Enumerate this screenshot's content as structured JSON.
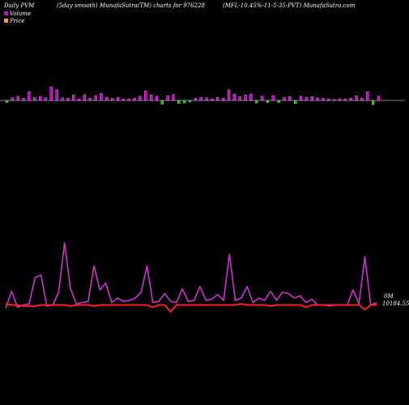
{
  "header": {
    "left": "Daily PVM",
    "smooth": "(5day smooth) MunafaSutra(TM) charts for 976228",
    "right": "(MFL-10.45%-11-5-35-PVT) MunafaSutra.com"
  },
  "legend": {
    "volume_label": "Volume",
    "price_label": "Price",
    "volume_color": "#cc00cc",
    "price_color": "#ff9933"
  },
  "labels": {
    "price_last": "0M",
    "price_value": "10184.55"
  },
  "colors": {
    "up_bar": "#cc00cc",
    "down_bar": "#00cc00",
    "baseline": "#ffffff",
    "volume_line": "#cc33cc",
    "price_line": "#ff2222"
  },
  "chart_data": [
    {
      "type": "bar",
      "note_series": "volume bars",
      "values": [
        -4,
        5,
        8,
        4,
        16,
        6,
        8,
        5,
        25,
        20,
        5,
        4,
        10,
        3,
        11,
        4,
        9,
        13,
        6,
        4,
        6,
        3,
        3,
        4,
        8,
        18,
        10,
        8,
        -7,
        9,
        11,
        -6,
        -5,
        -3,
        4,
        6,
        5,
        3,
        6,
        4,
        20,
        12,
        7,
        10,
        12,
        -5,
        8,
        -4,
        9,
        -4,
        6,
        7,
        -6,
        8,
        6,
        7,
        5,
        4,
        3,
        2,
        3,
        3,
        4,
        9,
        4,
        16,
        -8,
        8
      ],
      "ylim": [
        -10,
        27
      ]
    },
    {
      "type": "line",
      "series": [
        {
          "values": [
            3,
            18,
            4,
            6,
            7,
            30,
            32,
            5,
            6,
            17,
            60,
            20,
            7,
            8,
            9,
            40,
            19,
            25,
            8,
            12,
            9,
            10,
            12,
            17,
            40,
            8,
            9,
            16,
            9,
            8,
            20,
            9,
            10,
            22,
            10,
            11,
            15,
            10,
            50,
            10,
            12,
            22,
            8,
            12,
            10,
            18,
            10,
            17,
            16,
            12,
            14,
            8,
            11,
            6,
            6,
            5,
            6,
            6,
            6,
            19,
            7,
            48,
            6,
            8
          ]
        },
        {
          "values": [
            7,
            6,
            6,
            5,
            5,
            5,
            6,
            6,
            6,
            6,
            6,
            5,
            6,
            6,
            6,
            5,
            6,
            6,
            6,
            6,
            6,
            6,
            6,
            6,
            6,
            4,
            6,
            6,
            0,
            6,
            6,
            6,
            6,
            6,
            6,
            6,
            6,
            6,
            6,
            6,
            7,
            6,
            6,
            6,
            6,
            5,
            6,
            6,
            6,
            6,
            6,
            4,
            6,
            6,
            6,
            6,
            6,
            6,
            6,
            6,
            6,
            2,
            6,
            6
          ]
        }
      ],
      "ylim": [
        0,
        62
      ]
    }
  ]
}
